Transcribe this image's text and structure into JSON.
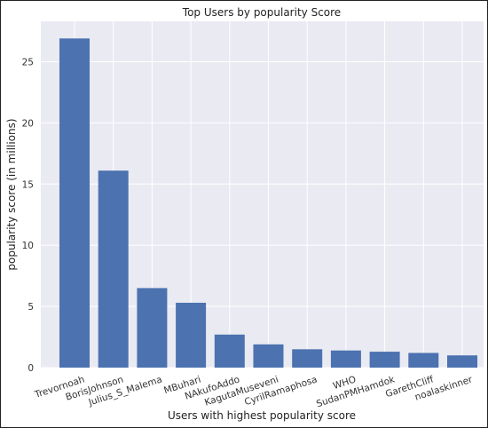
{
  "chart_data": {
    "type": "bar",
    "title": "Top Users by popularity Score",
    "xlabel": "Users with highest popularity score",
    "ylabel": "popularity score (in millions)",
    "categories": [
      "Trevornoah",
      "BorisJohnson",
      "Julius_S_Malema",
      "MBuhari",
      "NAkufoAddo",
      "KagutaMuseveni",
      "CyrilRamaphosa",
      "WHO",
      "SudanPMHamdok",
      "GarethCliff",
      "noalaskinner"
    ],
    "values": [
      26.9,
      16.1,
      6.5,
      5.3,
      2.7,
      1.9,
      1.5,
      1.4,
      1.3,
      1.2,
      1.0
    ],
    "ylim": [
      0,
      28.3
    ],
    "yticks": [
      "0",
      "5",
      "10",
      "15",
      "20",
      "25"
    ],
    "grid": true,
    "colors": {
      "bar": "#4c72b0",
      "background": "#eaeaf2",
      "grid": "#ffffff"
    }
  }
}
